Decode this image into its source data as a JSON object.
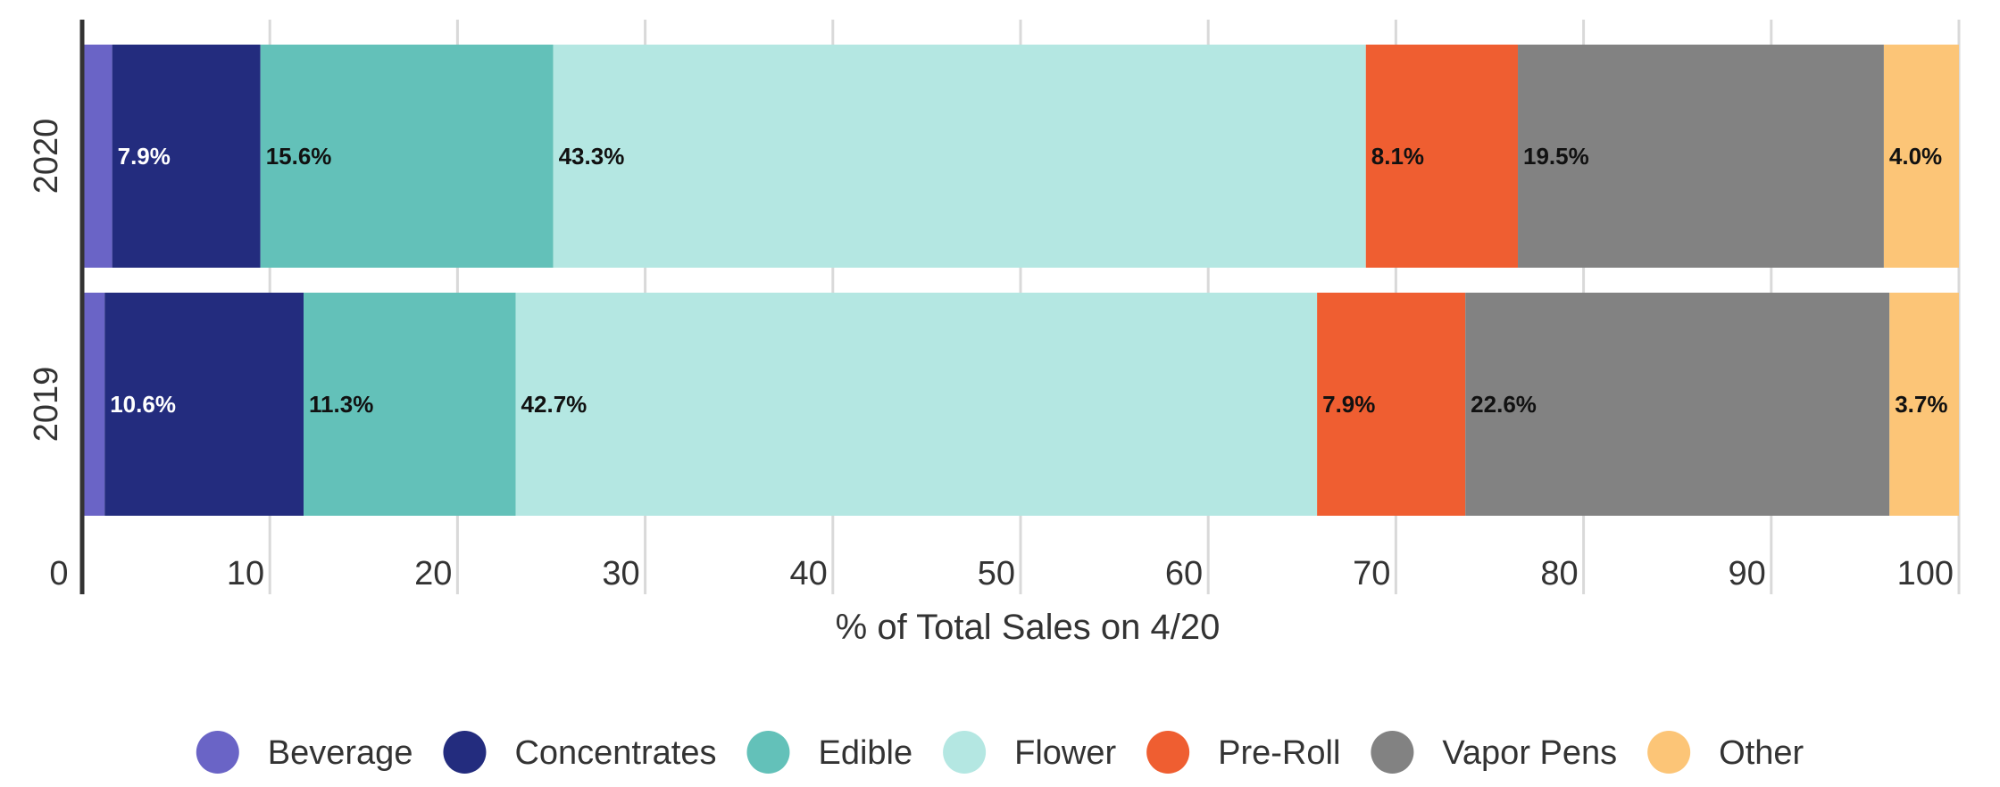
{
  "chart_data": {
    "type": "bar",
    "orientation": "horizontal",
    "stacked": true,
    "categories": [
      "2020",
      "2019"
    ],
    "series": [
      {
        "name": "Beverage",
        "color": "#6a64c6",
        "values": [
          1.6,
          1.2
        ],
        "labels": [
          "",
          ""
        ],
        "label_color": "#ffffff"
      },
      {
        "name": "Concentrates",
        "color": "#232c7e",
        "values": [
          7.9,
          10.6
        ],
        "labels": [
          "7.9%",
          "10.6%"
        ],
        "label_color": "#ffffff"
      },
      {
        "name": "Edible",
        "color": "#63c1b9",
        "values": [
          15.6,
          11.3
        ],
        "labels": [
          "15.6%",
          "11.3%"
        ],
        "label_color": "#111111"
      },
      {
        "name": "Flower",
        "color": "#b4e7e2",
        "values": [
          43.3,
          42.7
        ],
        "labels": [
          "43.3%",
          "42.7%"
        ],
        "label_color": "#111111"
      },
      {
        "name": "Pre-Roll",
        "color": "#ef5e31",
        "values": [
          8.1,
          7.9
        ],
        "labels": [
          "8.1%",
          "7.9%"
        ],
        "label_color": "#111111"
      },
      {
        "name": "Vapor Pens",
        "color": "#828282",
        "values": [
          19.5,
          22.6
        ],
        "labels": [
          "19.5%",
          "22.6%"
        ],
        "label_color": "#111111"
      },
      {
        "name": "Other",
        "color": "#fcc577",
        "values": [
          4.0,
          3.7
        ],
        "labels": [
          "4.0%",
          "3.7%"
        ],
        "label_color": "#111111"
      }
    ],
    "xlabel": "% of Total Sales on 4/20",
    "xlim": [
      0,
      100
    ],
    "xticks": [
      0,
      10,
      20,
      30,
      40,
      50,
      60,
      70,
      80,
      90,
      100
    ],
    "xtick_labels": [
      "0",
      "10",
      "20",
      "30",
      "40",
      "50",
      "60",
      "70",
      "80",
      "90",
      "100"
    ],
    "grid": true,
    "legend_position": "bottom"
  }
}
